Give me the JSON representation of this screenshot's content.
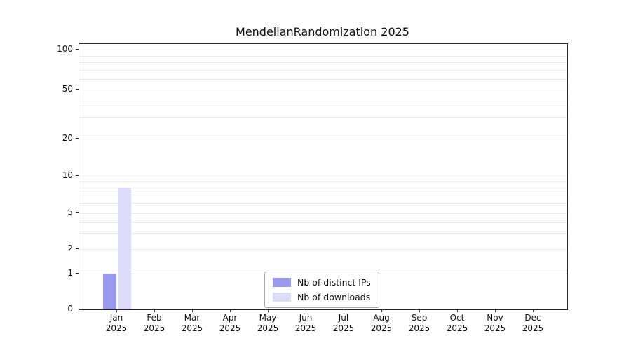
{
  "title": "MendelianRandomization 2025",
  "legend": {
    "items": [
      {
        "label": "Nb of distinct IPs",
        "color": "#9999ee"
      },
      {
        "label": "Nb of downloads",
        "color": "#dcdcf8"
      }
    ]
  },
  "chart_data": {
    "type": "bar",
    "title": "MendelianRandomization 2025",
    "year": "2025",
    "categories": [
      "Jan",
      "Feb",
      "Mar",
      "Apr",
      "May",
      "Jun",
      "Jul",
      "Aug",
      "Sep",
      "Oct",
      "Nov",
      "Dec"
    ],
    "series": [
      {
        "name": "Nb of distinct IPs",
        "color": "#9999ee",
        "values": [
          1,
          0,
          0,
          0,
          0,
          0,
          0,
          0,
          0,
          0,
          0,
          0
        ]
      },
      {
        "name": "Nb of downloads",
        "color": "#dcdcf8",
        "values": [
          8,
          0,
          0,
          0,
          0,
          0,
          0,
          0,
          0,
          0,
          0,
          0
        ]
      }
    ],
    "yticks": [
      0,
      1,
      2,
      5,
      10,
      20,
      50,
      100
    ],
    "yscale": "log",
    "ylim": [
      0,
      110
    ],
    "grid": "horizontal",
    "legend_position": "lower center"
  }
}
